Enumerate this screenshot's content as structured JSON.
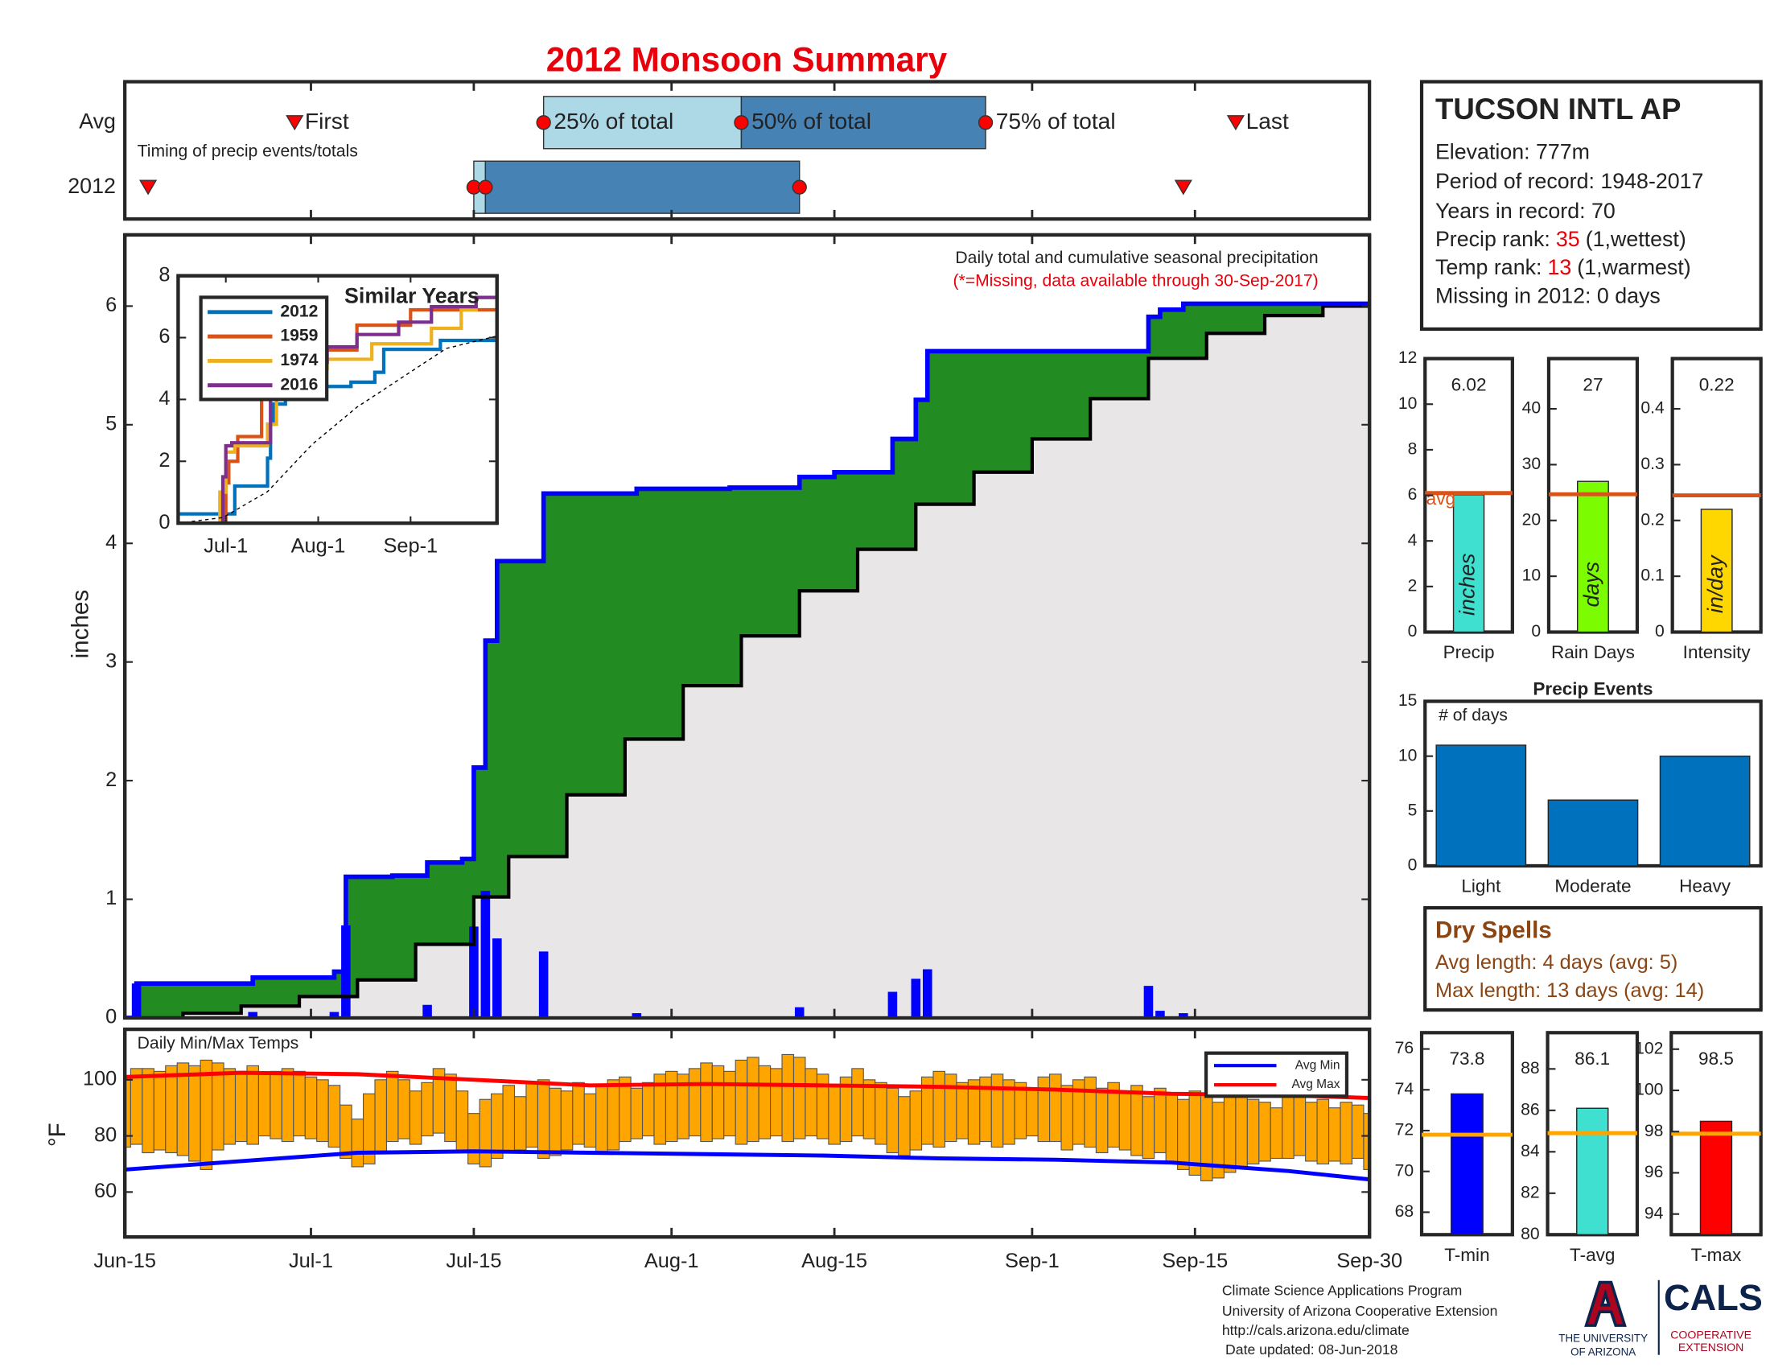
{
  "title": "2012 Monsoon Summary",
  "station": {
    "name": "TUCSON INTL AP",
    "lines": [
      "Elevation: 777m",
      "Period of record: 1948-2017",
      "Years in record: 70",
      "Missing in 2012: 0 days"
    ],
    "ranks": [
      {
        "label": "Precip rank:",
        "value": "35",
        "note": "(1,wettest)"
      },
      {
        "label": "Temp rank:",
        "value": "13",
        "note": "(1,warmest)"
      }
    ]
  },
  "dry_spells": {
    "title": "Dry Spells",
    "lines": [
      "Avg length: 4 days (avg: 5)",
      "Max length: 13 days (avg: 14)"
    ]
  },
  "footer": {
    "lines": [
      "Climate Science Applications Program",
      "University of Arizona Cooperative Extension",
      "http://cals.arizona.edu/climate",
      "Date updated: 08-Jun-2018"
    ],
    "logo": {
      "university": [
        "THE UNIVERSITY",
        "OF ARIZONA"
      ],
      "cals": "CALS",
      "extension": [
        "COOPERATIVE",
        "EXTENSION"
      ]
    }
  },
  "chart_data": [
    {
      "type": "timeline",
      "annotation": "Timing of precip events/totals",
      "xlim": [
        0,
        107
      ],
      "markers": [
        "First",
        "25% of total",
        "50% of total",
        "75% of total",
        "Last"
      ],
      "colors": [
        "#add8e6",
        "#4682b4"
      ],
      "marker_color": "#ff0000",
      "series": [
        {
          "name": "Avg",
          "values": [
            14.6,
            36,
            53,
            74,
            95.5
          ]
        },
        {
          "name": "2012",
          "values": [
            2,
            30,
            31,
            58,
            91
          ]
        }
      ]
    },
    {
      "type": "step",
      "annotation": "Daily total and cumulative seasonal precipitation",
      "note": "(*=Missing, data available through 30-Sep-2017)",
      "ylabel": "inches",
      "xlim": [
        0,
        107
      ],
      "ylim": [
        0,
        6.6
      ],
      "yticks": [
        0,
        1,
        2,
        3,
        4,
        5,
        6
      ],
      "daily": {
        "color": "#0000ff",
        "x": [
          1,
          11,
          18,
          19,
          26,
          30,
          31,
          32,
          36,
          44,
          58,
          66,
          68,
          69,
          88,
          89,
          91
        ],
        "values": [
          0.29,
          0.05,
          0.05,
          0.78,
          0.11,
          0.77,
          1.07,
          0.67,
          0.56,
          0.04,
          0.09,
          0.22,
          0.33,
          0.41,
          0.27,
          0.06,
          0.04
        ]
      },
      "cumulative": {
        "color": "#0000ff",
        "fill": "#228b22",
        "x": [
          0,
          1,
          11,
          18,
          19,
          23,
          26,
          29,
          30,
          31,
          32,
          36,
          44,
          52,
          58,
          61,
          66,
          68,
          69,
          88,
          89,
          91
        ],
        "values": [
          0,
          0.29,
          0.34,
          0.39,
          1.19,
          1.2,
          1.31,
          1.34,
          2.11,
          3.18,
          3.85,
          4.42,
          4.46,
          4.47,
          4.56,
          4.6,
          4.88,
          5.21,
          5.62,
          5.91,
          5.97,
          6.02
        ]
      },
      "average": {
        "color": "#000000",
        "fill": "#e8e6e6",
        "x": [
          0,
          5,
          10,
          15,
          20,
          25,
          30,
          33,
          38,
          43,
          48,
          53,
          58,
          63,
          68,
          73,
          78,
          83,
          88,
          93,
          98,
          103,
          107
        ],
        "values": [
          0,
          0.04,
          0.1,
          0.18,
          0.32,
          0.62,
          1.02,
          1.36,
          1.88,
          2.35,
          2.8,
          3.22,
          3.6,
          3.95,
          4.33,
          4.6,
          4.88,
          5.22,
          5.56,
          5.77,
          5.92,
          6,
          6.05
        ]
      }
    },
    {
      "type": "line",
      "title": "Similar Years",
      "xlim": [
        0,
        107
      ],
      "ylim": [
        0,
        8
      ],
      "yticks": [
        0,
        2,
        4,
        6,
        8
      ],
      "xticks": [
        {
          "value": 16,
          "label": "Jul-1"
        },
        {
          "value": 47,
          "label": "Aug-1"
        },
        {
          "value": 78,
          "label": "Sep-1"
        }
      ],
      "legend": "upper left",
      "series": [
        {
          "name": "2012",
          "color": "#0072bd",
          "x": [
            0,
            19,
            30,
            31,
            32,
            36,
            58,
            66,
            69,
            88,
            107
          ],
          "values": [
            0.3,
            1.2,
            2.1,
            3.2,
            3.85,
            4.42,
            4.56,
            4.88,
            5.62,
            5.91,
            6.02
          ]
        },
        {
          "name": "1959",
          "color": "#d95319",
          "x": [
            0,
            16,
            17,
            20,
            28,
            37,
            42,
            60,
            78
          ],
          "values": [
            0,
            1.3,
            2,
            2.8,
            4.3,
            5.1,
            5.6,
            6.4,
            6.9
          ]
        },
        {
          "name": "1974",
          "color": "#edb120",
          "x": [
            0,
            14,
            16,
            19,
            30,
            33,
            36,
            50,
            65,
            85,
            95,
            100
          ],
          "values": [
            0,
            1,
            2.3,
            2.5,
            3.2,
            4,
            5,
            5.3,
            5.8,
            6.3,
            6.9,
            7.3
          ]
        },
        {
          "name": "2016",
          "color": "#7e2f8e",
          "x": [
            0,
            15,
            16,
            18,
            31,
            34,
            50,
            60,
            74,
            85,
            100
          ],
          "values": [
            0,
            1.5,
            2.5,
            2.6,
            4.2,
            5.2,
            5.7,
            6.1,
            6.5,
            7,
            7.3
          ]
        },
        {
          "color": "#000000",
          "dash": true,
          "x": [
            0,
            15,
            30,
            45,
            60,
            75,
            90,
            107
          ],
          "values": [
            0,
            0.18,
            1.02,
            2.55,
            3.75,
            4.7,
            5.65,
            6.05
          ]
        }
      ]
    },
    {
      "type": "range_bar",
      "title": "Daily Min/Max Temps",
      "ylabel": "°F",
      "xlim": [
        0,
        107
      ],
      "ylim": [
        44,
        118
      ],
      "yticks": [
        60,
        80,
        100
      ],
      "legend": "upper right",
      "xticks": [
        {
          "value": 0,
          "label": "Jun-15"
        },
        {
          "value": 16,
          "label": "Jul-1"
        },
        {
          "value": 30,
          "label": "Jul-15"
        },
        {
          "value": 47,
          "label": "Aug-1"
        },
        {
          "value": 61,
          "label": "Aug-15"
        },
        {
          "value": 78,
          "label": "Sep-1"
        },
        {
          "value": 92,
          "label": "Sep-15"
        },
        {
          "value": 107,
          "label": "Sep-30"
        }
      ],
      "bars": {
        "color": "#ffa500",
        "low": [
          76,
          77,
          74,
          75,
          74,
          73,
          71,
          68,
          75,
          77,
          78,
          77,
          80,
          79,
          78,
          80,
          79,
          78,
          76,
          72,
          69,
          70,
          74,
          78,
          79,
          77,
          80,
          81,
          78,
          74,
          70,
          69,
          72,
          74,
          75,
          76,
          72,
          73,
          75,
          77,
          76,
          74,
          75,
          78,
          79,
          80,
          77,
          78,
          79,
          80,
          78,
          79,
          80,
          77,
          78,
          79,
          80,
          78,
          79,
          80,
          79,
          77,
          78,
          80,
          79,
          77,
          74,
          73,
          75,
          77,
          76,
          78,
          79,
          77,
          78,
          76,
          77,
          79,
          80,
          78,
          78,
          75,
          77,
          76,
          74,
          76,
          75,
          73,
          72,
          74,
          70,
          68,
          66,
          64,
          65,
          67,
          69,
          70,
          71,
          72,
          72,
          73,
          71,
          70,
          71,
          70,
          72,
          68
        ],
        "high": [
          101,
          104,
          104,
          103,
          105,
          106,
          105,
          107,
          106,
          104,
          103,
          105,
          102,
          103,
          104,
          103,
          101,
          100,
          98,
          91,
          86,
          95,
          100,
          103,
          100,
          96,
          99,
          104,
          102,
          96,
          88,
          93,
          95,
          98,
          94,
          99,
          100,
          97,
          96,
          99,
          95,
          98,
          100,
          101,
          97,
          99,
          102,
          103,
          102,
          104,
          106,
          105,
          103,
          107,
          108,
          105,
          104,
          109,
          108,
          104,
          102,
          98,
          101,
          104,
          100,
          99,
          97,
          94,
          96,
          101,
          103,
          102,
          99,
          100,
          101,
          102,
          100,
          99,
          97,
          101,
          102,
          98,
          100,
          101,
          97,
          99,
          96,
          98,
          94,
          97,
          95,
          93,
          96,
          95,
          92,
          94,
          96,
          93,
          92,
          90,
          95,
          94,
          92,
          93,
          90,
          92,
          91,
          88
        ]
      },
      "series": [
        {
          "name": "Avg Min",
          "color": "#0000ff",
          "x": [
            0,
            10,
            20,
            30,
            40,
            50,
            60,
            70,
            80,
            90,
            100,
            107
          ],
          "values": [
            68,
            71,
            74,
            74.5,
            74,
            73.5,
            73,
            72,
            71.5,
            70.5,
            67.5,
            64.5
          ]
        },
        {
          "name": "Avg Max",
          "color": "#ff0000",
          "x": [
            0,
            10,
            20,
            30,
            40,
            50,
            60,
            70,
            80,
            90,
            100,
            107
          ],
          "values": [
            101,
            102.5,
            102,
            100,
            98,
            98.5,
            98,
            97.5,
            96.5,
            95,
            94.5,
            93.5
          ]
        }
      ]
    },
    {
      "type": "bar",
      "categories": [
        "Precip"
      ],
      "values": [
        6.02
      ],
      "color": "#40e0d0",
      "unit_label": "inches",
      "average": 6.1,
      "avg_label": "avg",
      "avg_color": "#d95319",
      "ylim": [
        0,
        12
      ],
      "yticks": [
        0,
        2,
        4,
        6,
        8,
        10,
        12
      ]
    },
    {
      "type": "bar",
      "categories": [
        "Rain Days"
      ],
      "values": [
        27
      ],
      "color": "#7cfc00",
      "unit_label": "days",
      "average": 24.7,
      "avg_color": "#d95319",
      "ylim": [
        0,
        49
      ],
      "yticks": [
        0,
        10,
        20,
        30,
        40
      ]
    },
    {
      "type": "bar",
      "categories": [
        "Intensity"
      ],
      "values": [
        0.22
      ],
      "color": "#ffd700",
      "unit_label": "in/day",
      "average": 0.245,
      "avg_color": "#d95319",
      "ylim": [
        0,
        0.49
      ],
      "yticks": [
        0,
        0.1,
        0.2,
        0.3,
        0.4
      ]
    },
    {
      "type": "bar",
      "title": "Precip Events",
      "annotation": "# of days",
      "categories": [
        "Light",
        "Moderate",
        "Heavy"
      ],
      "values": [
        11,
        6,
        10
      ],
      "color": "#0072bd",
      "ylim": [
        0,
        15
      ],
      "yticks": [
        0,
        5,
        10,
        15
      ]
    },
    {
      "type": "bar",
      "categories": [
        "T-min"
      ],
      "values": [
        73.8
      ],
      "color": "#0000ff",
      "average": 71.8,
      "avg_color": "#ffa500",
      "ylim": [
        66.9,
        76.8
      ],
      "yticks": [
        68,
        70,
        72,
        74,
        76
      ]
    },
    {
      "type": "bar",
      "categories": [
        "T-avg"
      ],
      "values": [
        86.1
      ],
      "color": "#40e0d0",
      "average": 84.9,
      "avg_color": "#ffa500",
      "ylim": [
        80,
        89.75
      ],
      "yticks": [
        80,
        82,
        84,
        86,
        88
      ]
    },
    {
      "type": "bar",
      "categories": [
        "T-max"
      ],
      "values": [
        98.5
      ],
      "color": "#ff0000",
      "average": 97.9,
      "avg_color": "#ffa500",
      "ylim": [
        93,
        102.8
      ],
      "yticks": [
        94,
        96,
        98,
        100,
        102
      ]
    }
  ]
}
